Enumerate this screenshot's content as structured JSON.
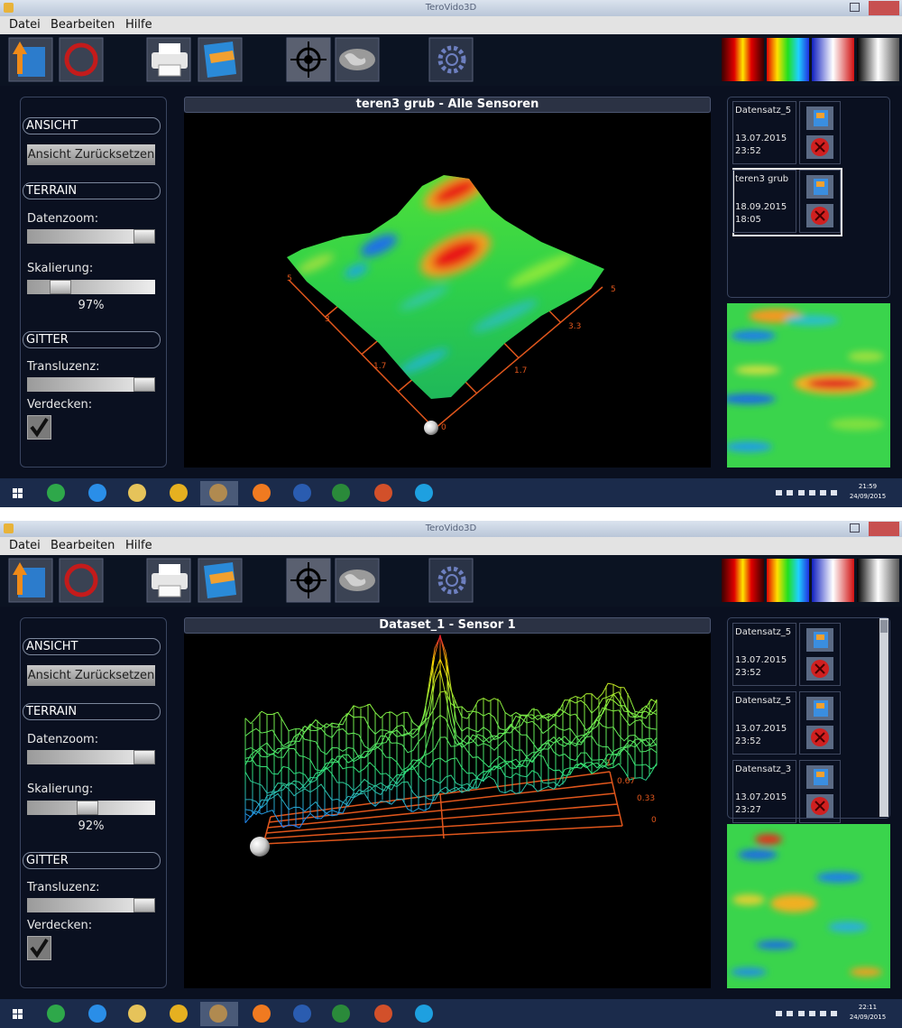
{
  "screens": [
    {
      "window_title": "TeroVido3D",
      "menu": [
        "Datei",
        "Bearbeiten",
        "Hilfe"
      ],
      "sidebar": {
        "ansicht": "ANSICHT",
        "reset_button": "Ansicht Zurücksetzen",
        "terrain": "TERRAIN",
        "datenzoom": "Datenzoom:",
        "skalierung": "Skalierung:",
        "skalierung_value": "97%",
        "gitter": "GITTER",
        "transluzenz": "Transluzenz:",
        "verdecken": "Verdecken:"
      },
      "view_title": "teren3 grub - Alle Sensoren",
      "axis_labels": [
        "5",
        "3",
        "1.7",
        "0",
        "1.7",
        "3.3",
        "5"
      ],
      "datasets": [
        {
          "name": "Datensatz_5",
          "date": "13.07.2015",
          "time": "23:52"
        },
        {
          "name": "teren3 grub",
          "date": "18.09.2015",
          "time": "18:05"
        }
      ],
      "clock": {
        "time": "21:59",
        "date": "24/09/2015"
      }
    },
    {
      "window_title": "TeroVido3D",
      "menu": [
        "Datei",
        "Bearbeiten",
        "Hilfe"
      ],
      "sidebar": {
        "ansicht": "ANSICHT",
        "reset_button": "Ansicht Zurücksetzen",
        "terrain": "TERRAIN",
        "datenzoom": "Datenzoom:",
        "skalierung": "Skalierung:",
        "skalierung_value": "92%",
        "gitter": "GITTER",
        "transluzenz": "Transluzenz:",
        "verdecken": "Verdecken:"
      },
      "view_title": "Dataset_1 - Sensor 1",
      "axis_labels": [
        "1",
        "0.67",
        "0.33",
        "0"
      ],
      "datasets": [
        {
          "name": "Datensatz_5",
          "date": "13.07.2015",
          "time": "23:52"
        },
        {
          "name": "Datensatz_5",
          "date": "13.07.2015",
          "time": "23:52"
        },
        {
          "name": "Datensatz_3",
          "date": "13.07.2015",
          "time": "23:27"
        }
      ],
      "clock": {
        "time": "22:11",
        "date": "24/09/2015"
      }
    }
  ]
}
